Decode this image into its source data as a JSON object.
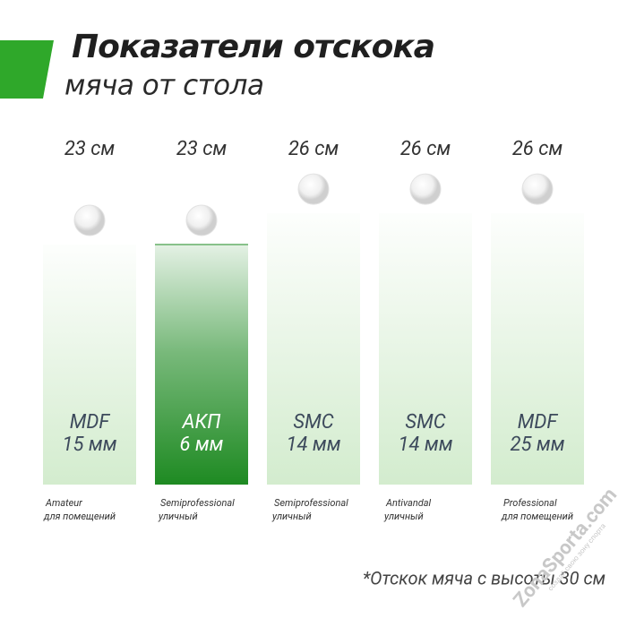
{
  "chart_data": {
    "type": "bar",
    "title": "Показатели отскока",
    "subtitle": "мяча от стола",
    "categories": [
      "MDF",
      "АКП",
      "SMC",
      "SMC",
      "MDF"
    ],
    "thickness": [
      "15 мм",
      "6 мм",
      "14 мм",
      "14 мм",
      "25 мм"
    ],
    "levels": [
      "Amateur",
      "Semiprofessional",
      "Semiprofessional",
      "Antivandal",
      "Professional"
    ],
    "usage": [
      "для помещений",
      "уличный",
      "уличный",
      "уличный",
      "для помещений"
    ],
    "values": [
      23,
      23,
      26,
      26,
      26
    ],
    "value_labels": [
      "23 см",
      "23 см",
      "26 см",
      "26 см",
      "26 см"
    ],
    "colors": [
      "#d3ecce",
      "#1e8a22",
      "#d3ecce",
      "#d3ecce",
      "#d3ecce"
    ],
    "footnote": "*Отскок мяча с высоты 30 см",
    "watermark": "ZonaSporta.com",
    "watermark_tagline": "создай свою зону спорта"
  }
}
